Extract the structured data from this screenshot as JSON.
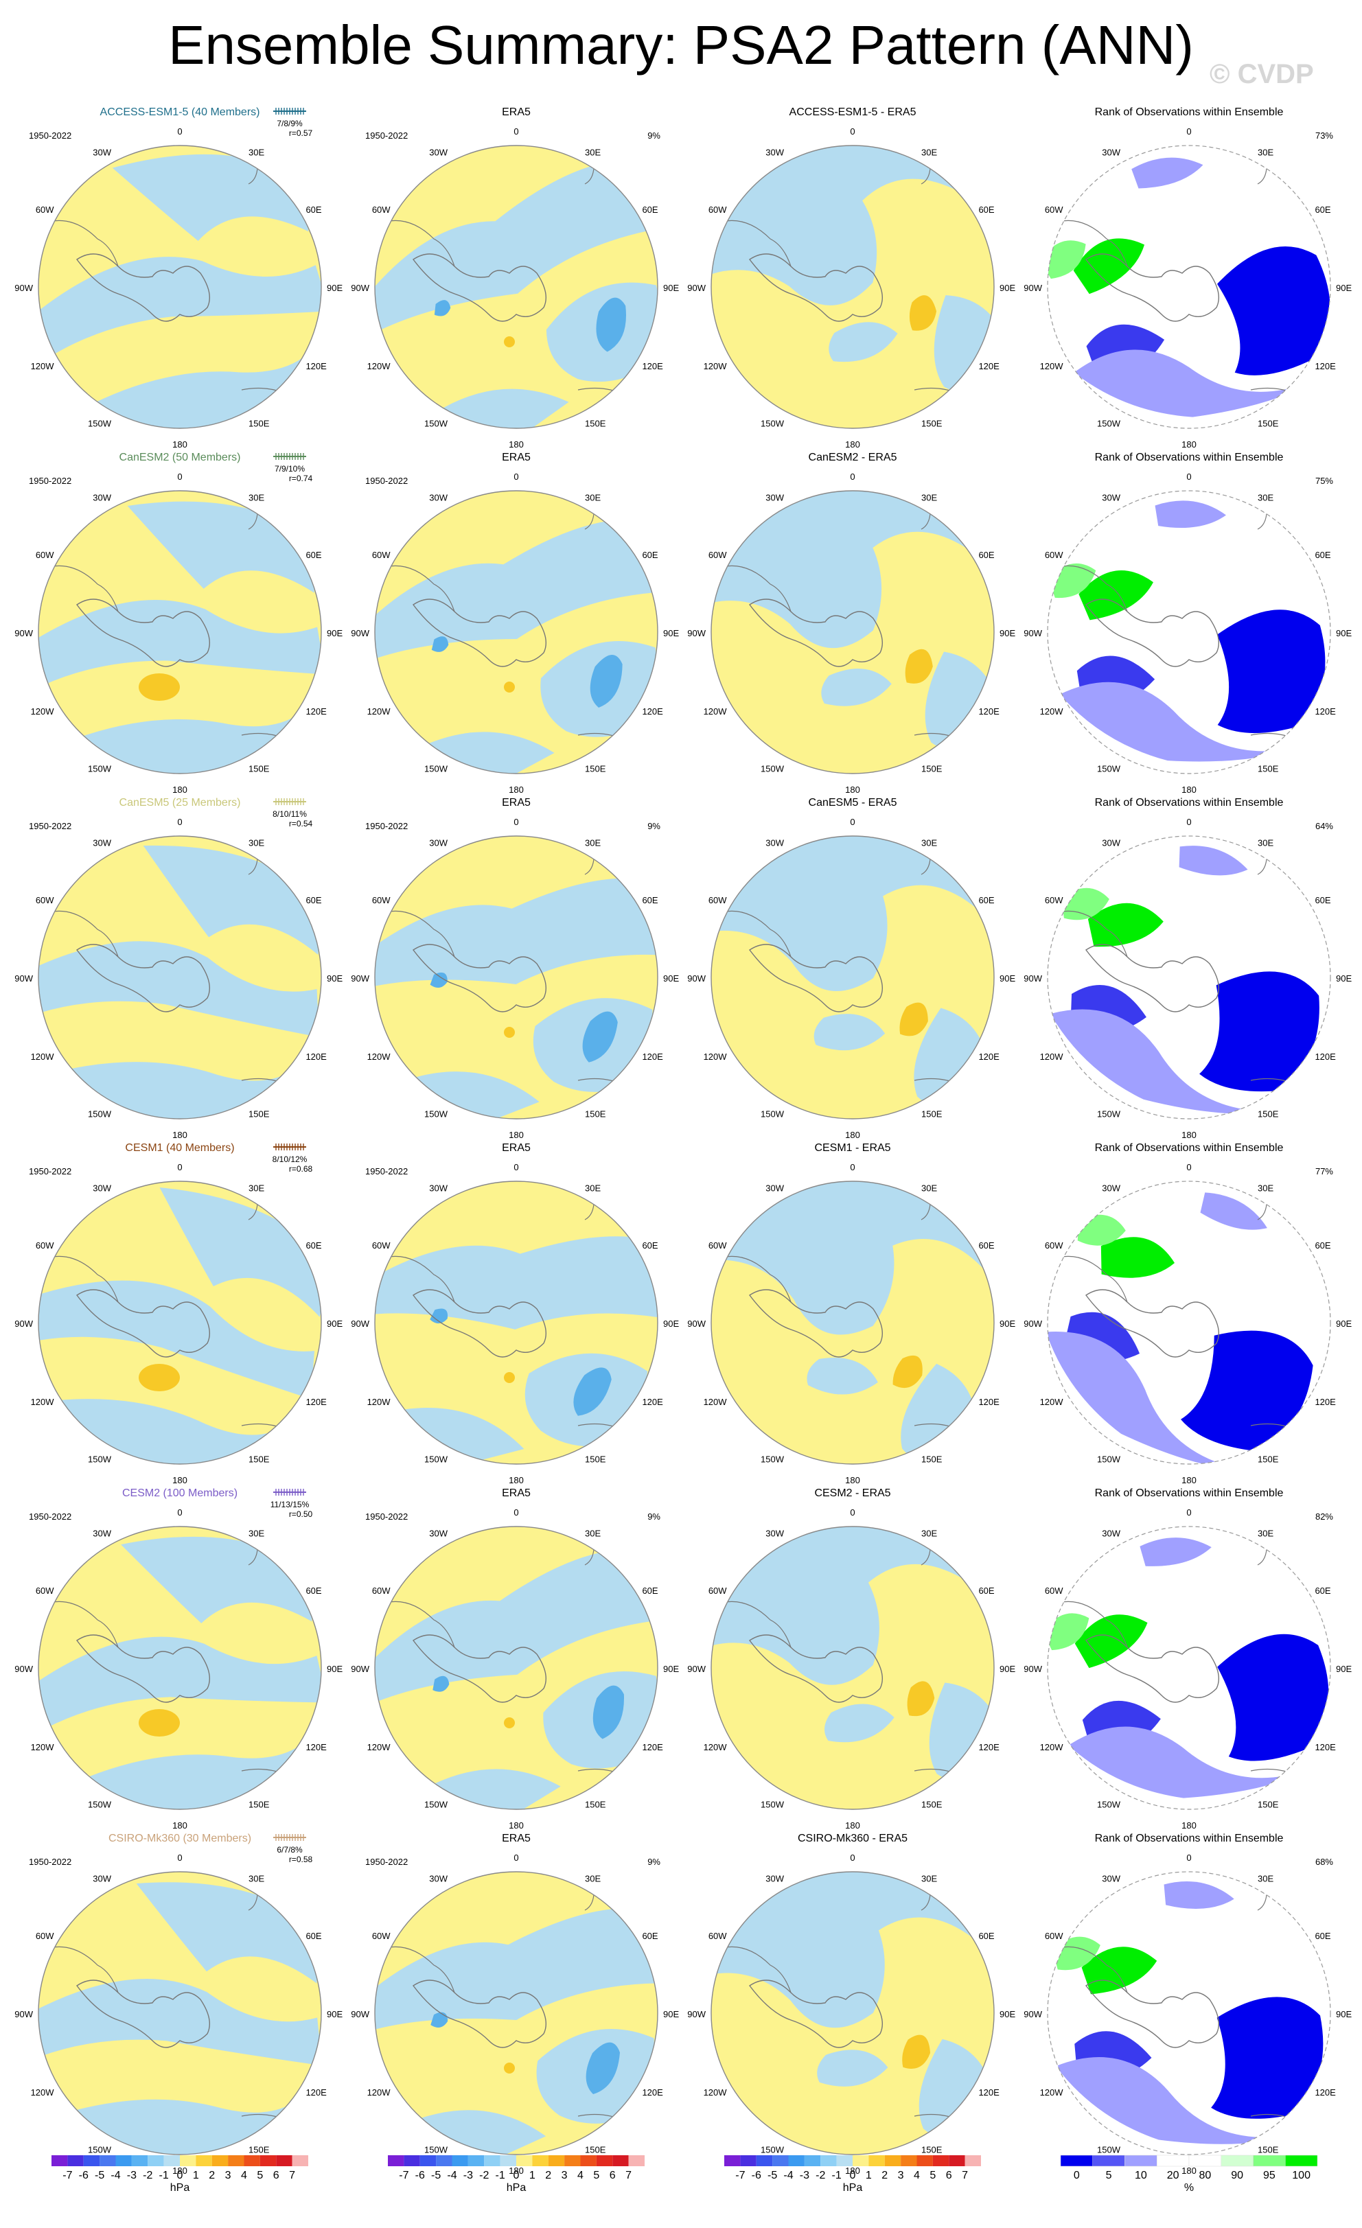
{
  "title": "Ensemble Summary: PSA2 Pattern (ANN)",
  "watermark": "© CVDP",
  "rows": [
    {
      "model_title": "ACCESS-ESM1-5 (40 Members)",
      "model_color": "#1f6f8b",
      "period": "1950-2022",
      "stats": "7/8/9%",
      "r": "r=0.57",
      "era_title": "ERA5",
      "era_period": "1950-2022",
      "era_pct": "9%",
      "diff_title": "ACCESS-ESM1-5 - ERA5",
      "rank_title": "Rank of Observations within Ensemble",
      "rank_pct": "73%"
    },
    {
      "model_title": "CanESM2 (50 Members)",
      "model_color": "#5a8c5a",
      "period": "1950-2022",
      "stats": "7/9/10%",
      "r": "r=0.74",
      "era_title": "ERA5",
      "era_period": "1950-2022",
      "era_pct": "",
      "diff_title": "CanESM2 - ERA5",
      "rank_title": "Rank of Observations within Ensemble",
      "rank_pct": "75%"
    },
    {
      "model_title": "CanESM5 (25 Members)",
      "model_color": "#c9c77a",
      "period": "1950-2022",
      "stats": "8/10/11%",
      "r": "r=0.54",
      "era_title": "ERA5",
      "era_period": "1950-2022",
      "era_pct": "9%",
      "diff_title": "CanESM5 - ERA5",
      "rank_title": "Rank of Observations within Ensemble",
      "rank_pct": "64%"
    },
    {
      "model_title": "CESM1 (40 Members)",
      "model_color": "#8b4513",
      "period": "1950-2022",
      "stats": "8/10/12%",
      "r": "r=0.68",
      "era_title": "ERA5",
      "era_period": "1950-2022",
      "era_pct": "",
      "diff_title": "CESM1 - ERA5",
      "rank_title": "Rank of Observations within Ensemble",
      "rank_pct": "77%"
    },
    {
      "model_title": "CESM2 (100 Members)",
      "model_color": "#7b5cc7",
      "period": "1950-2022",
      "stats": "11/13/15%",
      "r": "r=0.50",
      "era_title": "ERA5",
      "era_period": "1950-2022",
      "era_pct": "9%",
      "diff_title": "CESM2 - ERA5",
      "rank_title": "Rank of Observations within Ensemble",
      "rank_pct": "82%"
    },
    {
      "model_title": "CSIRO-Mk360 (30 Members)",
      "model_color": "#c9a27a",
      "period": "1950-2022",
      "stats": "6/7/8%",
      "r": "r=0.58",
      "era_title": "ERA5",
      "era_period": "1950-2022",
      "era_pct": "9%",
      "diff_title": "CSIRO-Mk360 - ERA5",
      "rank_title": "Rank of Observations within Ensemble",
      "rank_pct": "68%"
    }
  ],
  "lon_labels": [
    "0",
    "30E",
    "60E",
    "90E",
    "120E",
    "150E",
    "180",
    "150W",
    "120W",
    "90W",
    "60W",
    "30W"
  ],
  "colorbars": {
    "hpa_labels": [
      "-7",
      "-6",
      "-5",
      "-4",
      "-3",
      "-2",
      "-1",
      "0",
      "1",
      "2",
      "3",
      "4",
      "5",
      "6",
      "7"
    ],
    "hpa_unit": "hPa",
    "hpa_colors": [
      "#7a1fd6",
      "#4a2fe0",
      "#3a55ee",
      "#4a78f0",
      "#3b9af0",
      "#5ab2f2",
      "#8fd0f5",
      "#b8dff2",
      "#fdf18a",
      "#fcd23a",
      "#f9ad1c",
      "#f47e18",
      "#ec4e1a",
      "#e22a1f",
      "#d61a23",
      "#f7b3b3"
    ],
    "rank_labels": [
      "0",
      "5",
      "10",
      "20",
      "80",
      "90",
      "95",
      "100"
    ],
    "rank_unit": "%",
    "rank_colors": [
      "#0000ee",
      "#5555f5",
      "#a0a0ff",
      "#ffffff",
      "#ffffff",
      "#d2ffd2",
      "#80ff80",
      "#00ee00"
    ]
  },
  "colors": {
    "positive": "#fcf38e",
    "negative": "#b4dcf0",
    "strong_positive": "#f7c927",
    "strong_negative": "#5ab0ea",
    "coast": "#777777"
  }
}
